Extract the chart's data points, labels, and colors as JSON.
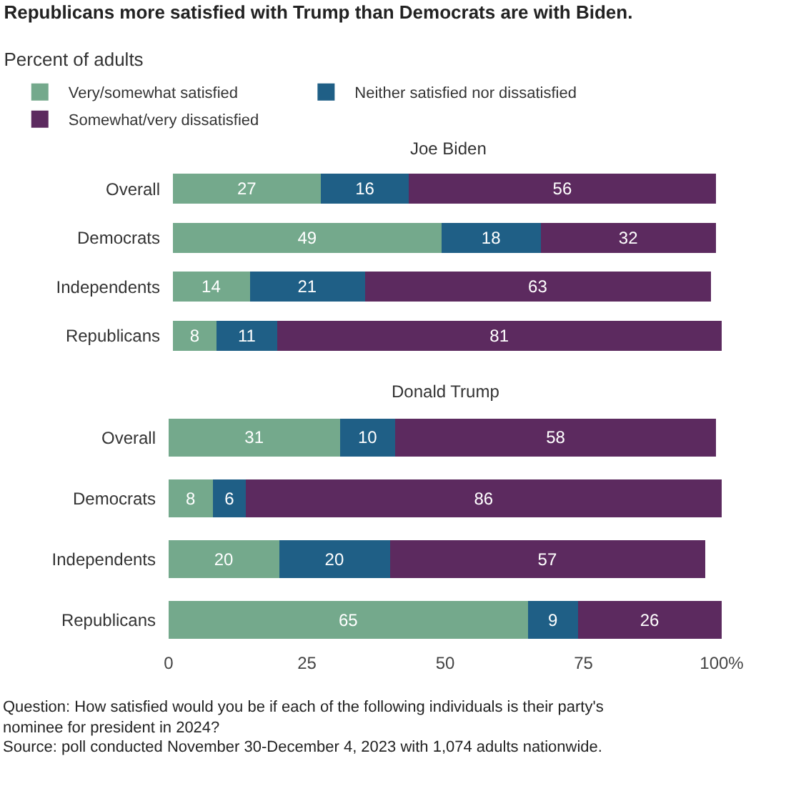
{
  "chart_data": [
    {
      "type": "bar",
      "title": "Republicans more satisfied with Trump than Democrats are with Biden.",
      "subtitle": "Percent of adults",
      "annotations": [
        "Joe Biden"
      ],
      "orientation": "horizontal",
      "stacked": true,
      "data_labels": true,
      "legend": "top",
      "tick_labels": "y",
      "grid": false,
      "xlim": [
        0,
        100
      ],
      "categories": [
        "Overall",
        "Democrats",
        "Independents",
        "Republicans"
      ],
      "series": [
        {
          "name": "Very/somewhat satisfied",
          "color": "#74a98c",
          "values": [
            27,
            49,
            14,
            8
          ]
        },
        {
          "name": "Neither satisfied nor dissatisfied",
          "color": "#1f5f86",
          "values": [
            16,
            18,
            21,
            11
          ]
        },
        {
          "name": "Somewhat/very dissatisfied",
          "color": "#5c2a5f",
          "values": [
            56,
            32,
            63,
            81
          ]
        }
      ]
    },
    {
      "type": "bar",
      "title": "Donald Trump",
      "annotations": [
        "Question: How satisfied would you be if each of the following individuals is their party's nominee for president in 2024?",
        "Source: poll conducted November 30-December 4, 2023 with 1,074 adults nationwide."
      ],
      "orientation": "horizontal",
      "stacked": true,
      "data_labels": true,
      "grid": false,
      "xlim": [
        0,
        100
      ],
      "xticks": [
        0,
        25,
        50,
        75,
        {
          "value": 100,
          "label": "100%"
        }
      ],
      "categories": [
        "Overall",
        "Democrats",
        "Independents",
        "Republicans"
      ],
      "series": [
        {
          "color": "#74a98c",
          "values": [
            31,
            8,
            20,
            65
          ]
        },
        {
          "color": "#1f5f86",
          "values": [
            10,
            6,
            20,
            9
          ]
        },
        {
          "color": "#5c2a5f",
          "values": [
            58,
            86,
            57,
            26
          ]
        }
      ]
    }
  ]
}
